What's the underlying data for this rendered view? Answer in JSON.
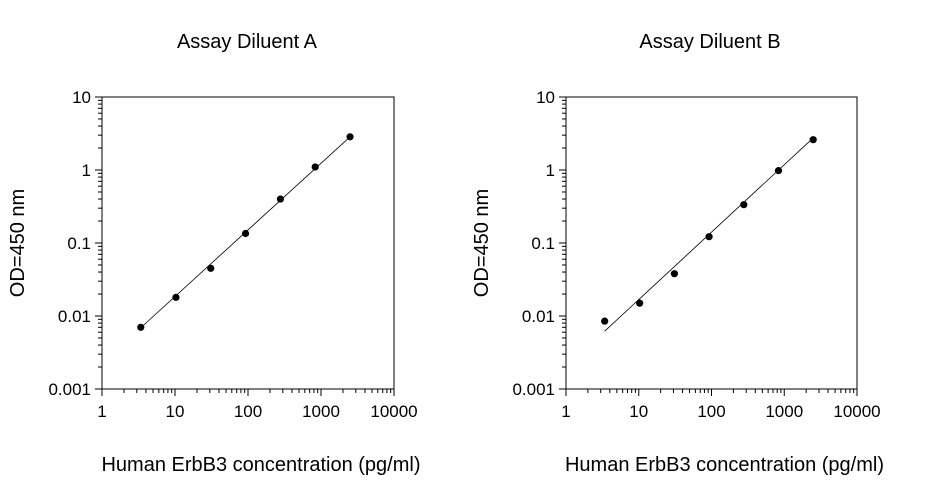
{
  "chart_data": [
    {
      "type": "scatter",
      "title": "Assay Diluent A",
      "xlabel": "Human ErbB3 concentration (pg/ml)",
      "ylabel": "OD=450 nm",
      "x_scale": "log",
      "y_scale": "log",
      "xlim": [
        1,
        10000
      ],
      "ylim": [
        0.001,
        10
      ],
      "x_ticks": [
        1,
        10,
        100,
        1000,
        10000
      ],
      "x_tick_labels": [
        "1",
        "10",
        "100",
        "1000",
        "10000"
      ],
      "y_ticks": [
        0.001,
        0.01,
        0.1,
        1,
        10
      ],
      "y_tick_labels": [
        "0.001",
        "0.01",
        "0.1",
        "1",
        "10"
      ],
      "grid": false,
      "series": [
        {
          "x": [
            3.4,
            10.3,
            30.9,
            92.6,
            278,
            833,
            2500
          ],
          "y": [
            0.007,
            0.018,
            0.045,
            0.135,
            0.4,
            1.1,
            2.85
          ],
          "fit_line": {
            "x": [
              3.4,
              2500
            ],
            "y": [
              0.0069,
              2.85
            ]
          }
        }
      ]
    },
    {
      "type": "scatter",
      "title": "Assay Diluent B",
      "xlabel": "Human ErbB3 concentration (pg/ml)",
      "ylabel": "OD=450 nm",
      "x_scale": "log",
      "y_scale": "log",
      "xlim": [
        1,
        10000
      ],
      "ylim": [
        0.001,
        10
      ],
      "x_ticks": [
        1,
        10,
        100,
        1000,
        10000
      ],
      "x_tick_labels": [
        "1",
        "10",
        "100",
        "1000",
        "10000"
      ],
      "y_ticks": [
        0.001,
        0.01,
        0.1,
        1,
        10
      ],
      "y_tick_labels": [
        "0.001",
        "0.01",
        "0.1",
        "1",
        "10"
      ],
      "grid": false,
      "series": [
        {
          "x": [
            3.4,
            10.3,
            30.9,
            92.6,
            278,
            833,
            2500
          ],
          "y": [
            0.0085,
            0.015,
            0.038,
            0.122,
            0.335,
            0.98,
            2.6
          ],
          "fit_line": {
            "x": [
              3.4,
              2500
            ],
            "y": [
              0.0062,
              2.75
            ]
          }
        }
      ]
    }
  ]
}
